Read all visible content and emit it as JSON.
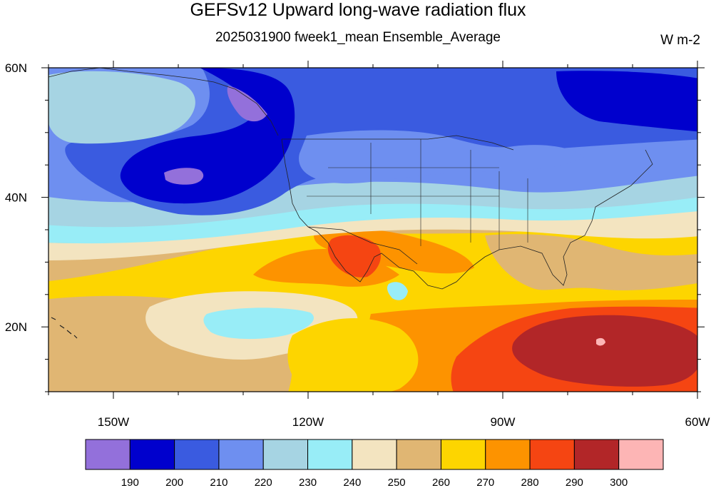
{
  "title": "GEFSv12 Upward long-wave radiation flux",
  "subtitle": "2025031900 fweek1_mean Ensemble_Average",
  "units": "W m-2",
  "map": {
    "lat_labels": [
      "60N",
      "40N",
      "20N"
    ],
    "lon_labels": [
      "150W",
      "120W",
      "90W",
      "60W"
    ],
    "lat_range": [
      10,
      60
    ],
    "lon_range": [
      -160,
      -60
    ]
  },
  "colorbar": {
    "labels": [
      "190",
      "200",
      "210",
      "220",
      "230",
      "240",
      "250",
      "260",
      "270",
      "280",
      "290",
      "300"
    ],
    "colors": [
      "#9370db",
      "#0000cd",
      "#3a5be0",
      "#6e8ff0",
      "#a6d4e3",
      "#98edf7",
      "#f3e4c0",
      "#e0b673",
      "#fdd500",
      "#fd9300",
      "#f54512",
      "#b22628",
      "#fdb5b5"
    ]
  }
}
